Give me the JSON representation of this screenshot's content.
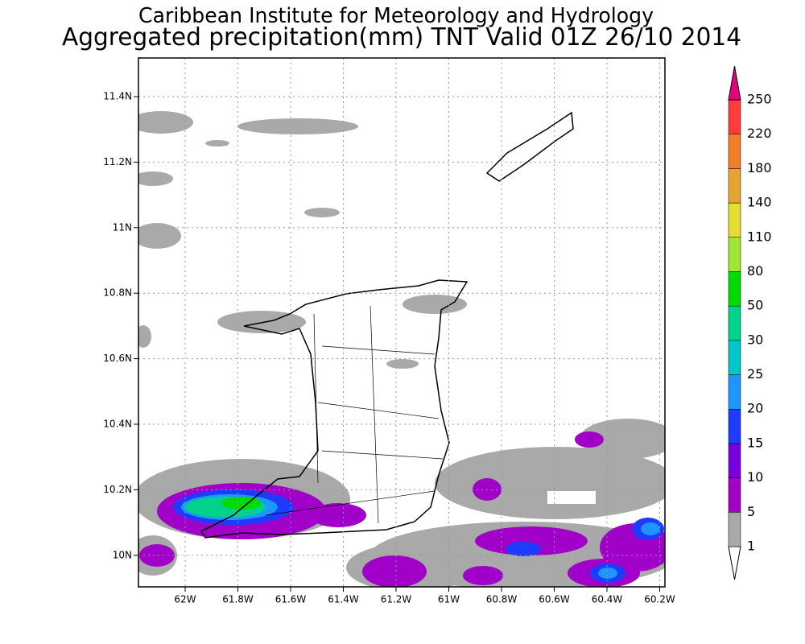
{
  "header": {
    "title": "Caribbean Institute for Meteorology and Hydrology",
    "subtitle": "Aggregated precipitation(mm) TNT Valid 01Z 26/10 2014"
  },
  "map": {
    "lat_labels": [
      "11.4N",
      "11.2N",
      "11N",
      "10.8N",
      "10.6N",
      "10.4N",
      "10.2N",
      "10N"
    ],
    "lon_labels": [
      "62W",
      "61.8W",
      "61.6W",
      "61.4W",
      "61.2W",
      "61W",
      "60.8W",
      "60.6W",
      "60.4W",
      "60.2W"
    ]
  },
  "colorbar": {
    "levels": [
      1,
      5,
      10,
      15,
      20,
      25,
      30,
      50,
      80,
      110,
      140,
      180,
      220,
      250
    ],
    "colors": [
      "#ffffff",
      "#a9a9a9",
      "#a000c8",
      "#7800dc",
      "#1e3cff",
      "#1e96ff",
      "#00c8c8",
      "#00d28c",
      "#00dc00",
      "#a0e632",
      "#e6dc32",
      "#e6a532",
      "#f07d28",
      "#ff3c3c",
      "#e6007f"
    ]
  }
}
